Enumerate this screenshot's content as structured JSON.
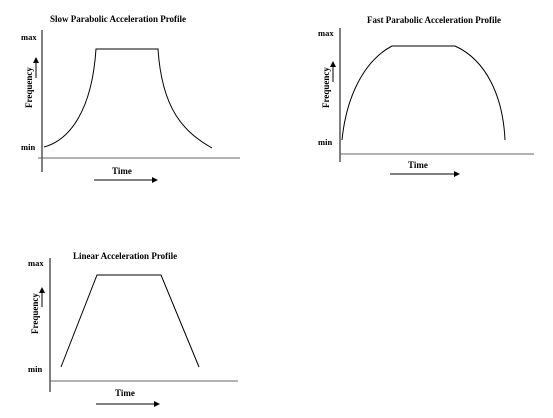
{
  "diagrams": [
    {
      "title": "Slow Parabolic Acceleration Profile",
      "y_max": "max",
      "y_min": "min",
      "y_axis": "Frequency",
      "x_axis": "Time"
    },
    {
      "title": "Fast Parabolic Acceleration Profile",
      "y_max": "max",
      "y_min": "min",
      "y_axis": "Frequency",
      "x_axis": "Time"
    },
    {
      "title": "Linear  Acceleration Profile",
      "y_max": "max",
      "y_min": "min",
      "y_axis": "Frequency",
      "x_axis": "Time"
    }
  ]
}
